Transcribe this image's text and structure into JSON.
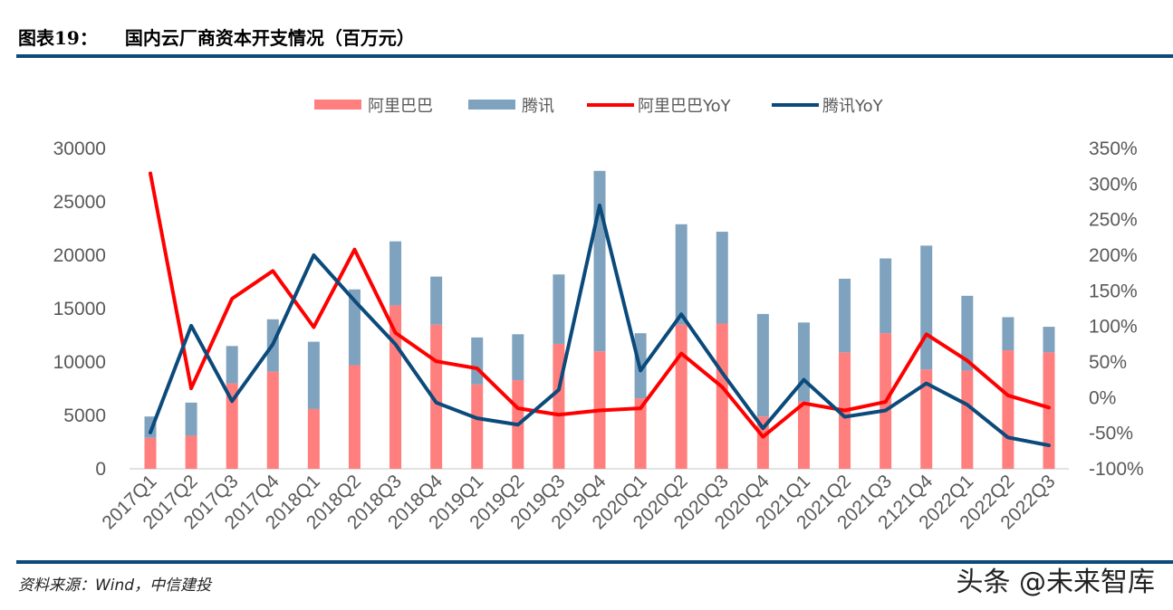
{
  "header": {
    "label": "图表19：",
    "title": "国内云厂商资本开支情况（百万元）"
  },
  "footer": {
    "source": "资料来源：Wind，中信建投",
    "watermark": "头条 @未来智库"
  },
  "colors": {
    "alibaba_bar": "#ff7f7f",
    "tencent_bar": "#7fa3bf",
    "alibaba_yoy": "#ff0000",
    "tencent_yoy": "#0b4a7a",
    "rule": "#0b4a7a"
  },
  "chart_data": {
    "type": "bar",
    "stacked": true,
    "title": "",
    "categories": [
      "2017Q1",
      "2017Q2",
      "2017Q3",
      "2017Q4",
      "2018Q1",
      "2018Q2",
      "2018Q3",
      "2018Q4",
      "2019Q1",
      "2019Q2",
      "2019Q3",
      "2019Q4",
      "2020Q1",
      "2020Q2",
      "2020Q3",
      "2020Q4",
      "2021Q1",
      "2021Q2",
      "2021Q3",
      "2121Q4",
      "2022Q1",
      "2022Q2",
      "2022Q3"
    ],
    "series": [
      {
        "name": "阿里巴巴",
        "type": "bar",
        "axis": "left",
        "values": [
          2900,
          3100,
          8000,
          9100,
          5600,
          9700,
          15300,
          13500,
          7900,
          8300,
          11700,
          11000,
          6600,
          13500,
          13600,
          4900,
          6300,
          10900,
          12700,
          9300,
          9200,
          11100,
          10900
        ]
      },
      {
        "name": "腾讯",
        "type": "bar",
        "axis": "left",
        "values": [
          2000,
          3100,
          3500,
          4900,
          6300,
          7100,
          6000,
          4500,
          4400,
          4300,
          6500,
          16900,
          6100,
          9400,
          8600,
          9600,
          7400,
          6900,
          7000,
          11600,
          7000,
          3100,
          2400
        ]
      },
      {
        "name": "阿里巴巴YoY",
        "type": "line",
        "axis": "right",
        "values": [
          315,
          13,
          139,
          178,
          99,
          208,
          91,
          51,
          41,
          -15,
          -24,
          -18,
          -15,
          62,
          15,
          -55,
          -8,
          -18,
          -6,
          89,
          52,
          3,
          -14
        ]
      },
      {
        "name": "腾讯YoY",
        "type": "line",
        "axis": "right",
        "values": [
          -49,
          101,
          -5,
          75,
          200,
          136,
          75,
          -7,
          -29,
          -38,
          11,
          270,
          38,
          117,
          35,
          -43,
          25,
          -27,
          -18,
          20,
          -10,
          -56,
          -67
        ]
      }
    ],
    "y_left": {
      "range": [
        0,
        30000
      ],
      "ticks": [
        "0",
        "5000",
        "10000",
        "15000",
        "20000",
        "25000",
        "30000"
      ]
    },
    "y_right": {
      "range": [
        -100,
        350
      ],
      "unit": "%",
      "ticks": [
        "-100%",
        "-50%",
        "0%",
        "50%",
        "100%",
        "150%",
        "200%",
        "250%",
        "300%",
        "350%"
      ]
    },
    "legend": "top",
    "grid": false
  }
}
